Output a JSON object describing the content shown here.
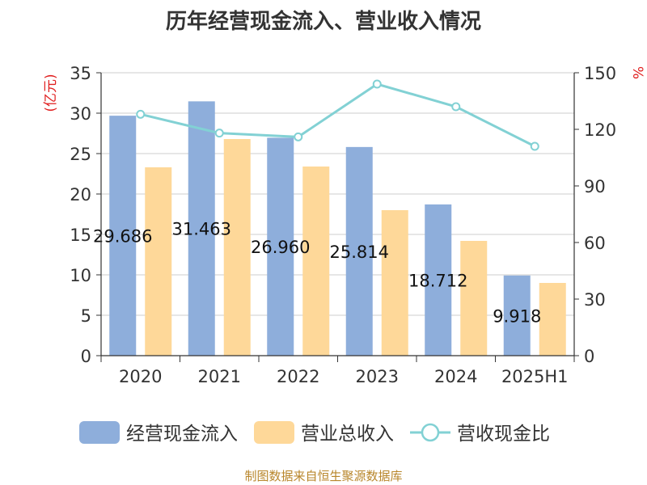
{
  "chart_data": {
    "type": "bar",
    "title": "历年经营现金流入、营业收入情况",
    "categories": [
      "2020",
      "2021",
      "2022",
      "2023",
      "2024",
      "2025H1"
    ],
    "series": [
      {
        "name": "经营现金流入",
        "type": "bar",
        "axis": "left",
        "color": "#8eaedb",
        "values": [
          29.686,
          31.463,
          26.96,
          25.814,
          18.712,
          9.918
        ],
        "labels": [
          "29.686",
          "31.463",
          "26.960",
          "25.814",
          "18.712",
          "9.918"
        ]
      },
      {
        "name": "营业总收入",
        "type": "bar",
        "axis": "left",
        "color": "#fed899",
        "values": [
          23.3,
          26.8,
          23.4,
          18.0,
          14.2,
          9.0
        ]
      },
      {
        "name": "营收现金比",
        "type": "line",
        "axis": "right",
        "color": "#82d1d4",
        "values": [
          128,
          118,
          116,
          144,
          132,
          111
        ]
      }
    ],
    "ylabel": "(亿元)",
    "y2label": "%",
    "ylim": [
      0,
      35
    ],
    "yticks": [
      0,
      5,
      10,
      15,
      20,
      25,
      30,
      35
    ],
    "y2lim": [
      0,
      150
    ],
    "y2ticks": [
      0,
      30,
      60,
      90,
      120,
      150
    ],
    "grid": true,
    "legend_position": "bottom"
  },
  "footer": {
    "source": "制图数据来自恒生聚源数据库"
  }
}
